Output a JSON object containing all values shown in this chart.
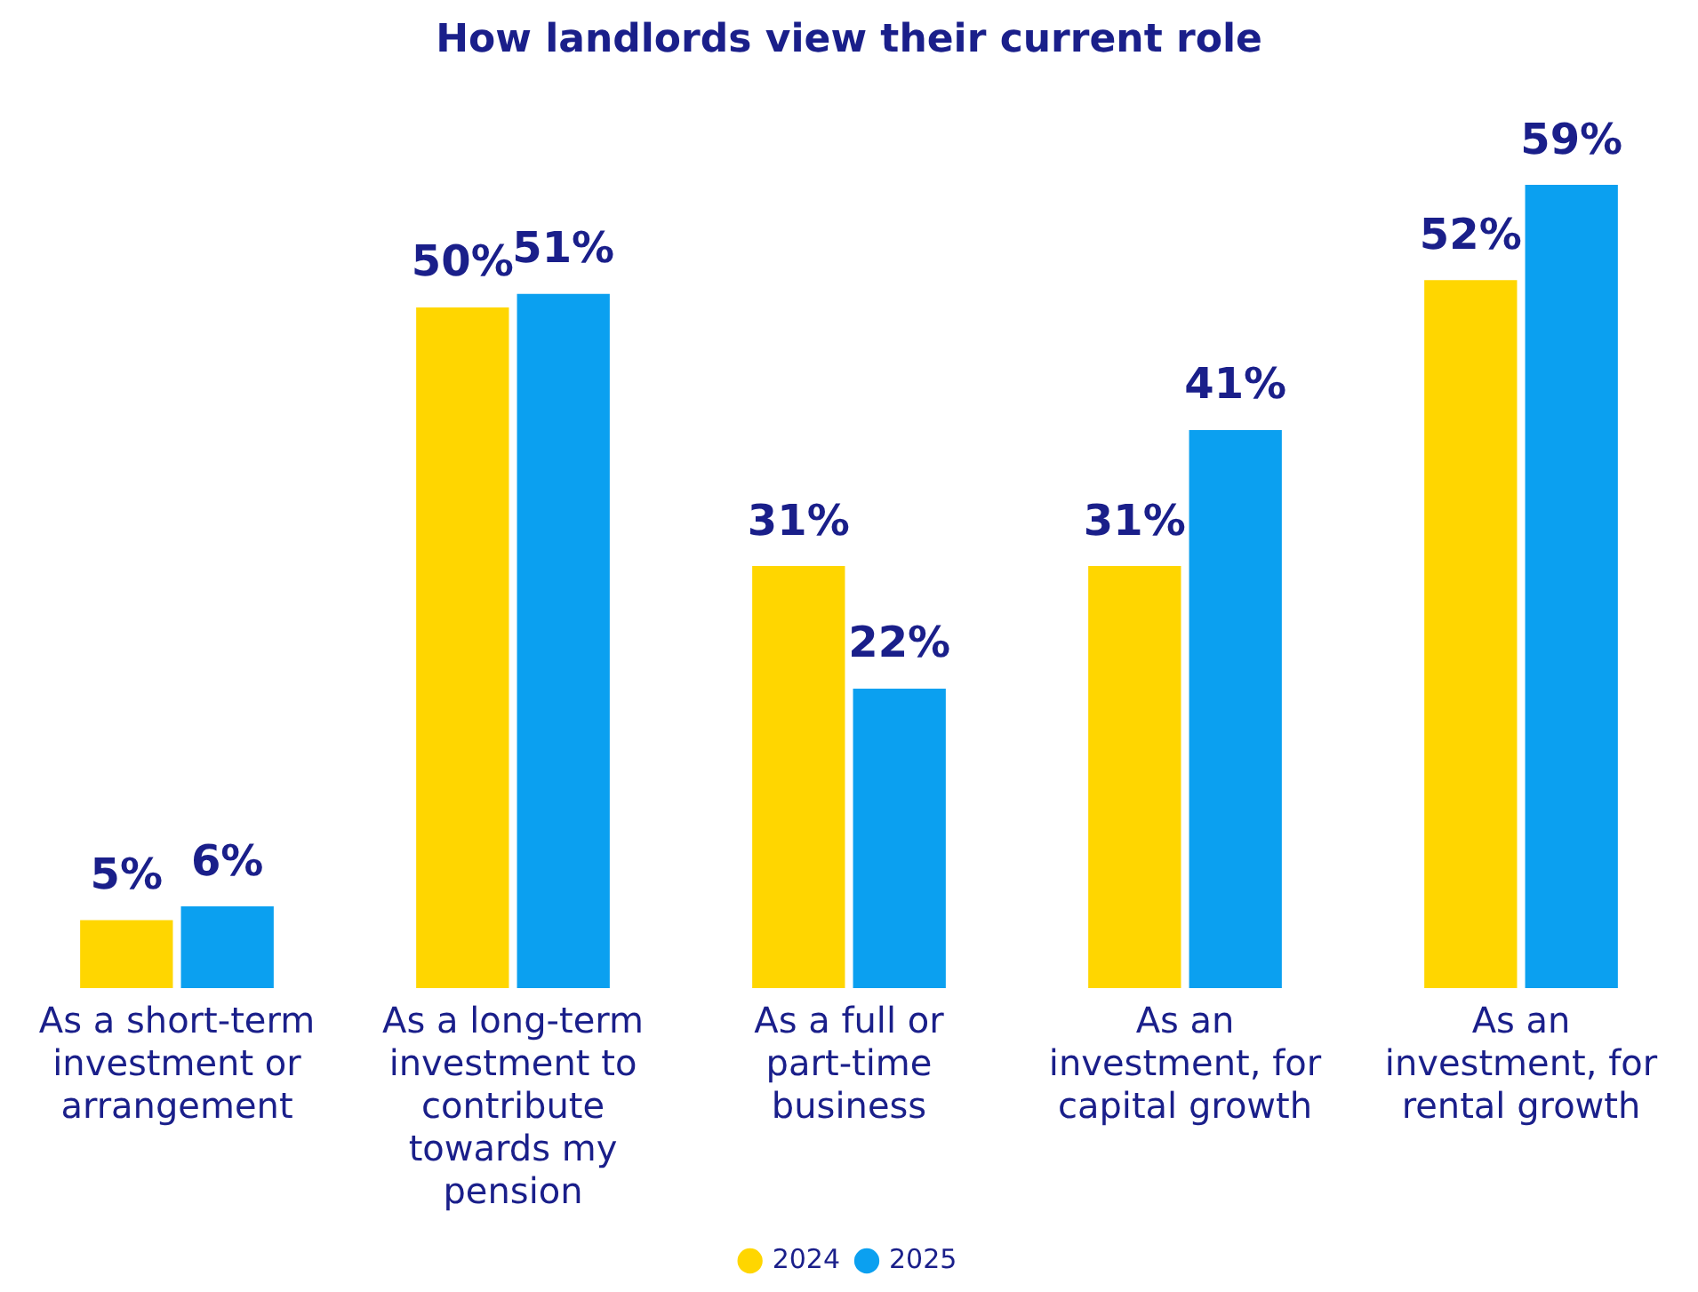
{
  "chart_data": {
    "type": "bar",
    "title": "How landlords view their current role",
    "categories": [
      "As a short-term investment or arrangement",
      "As a long-term investment to contribute towards my pension",
      "As a full or part-time business",
      "As an investment, for capital growth",
      "As an investment, for rental growth"
    ],
    "series": [
      {
        "name": "2024",
        "color": "#ffd600",
        "values": [
          5,
          50,
          31,
          31,
          52
        ],
        "value_labels": [
          "5%",
          "50%",
          "31%",
          "31%",
          "52%"
        ]
      },
      {
        "name": "2025",
        "color": "#0ba0f0",
        "values": [
          6,
          51,
          22,
          41,
          59
        ],
        "value_labels": [
          "6%",
          "51%",
          "22%",
          "41%",
          "59%"
        ]
      }
    ],
    "grid": false,
    "legend": "bottom"
  }
}
